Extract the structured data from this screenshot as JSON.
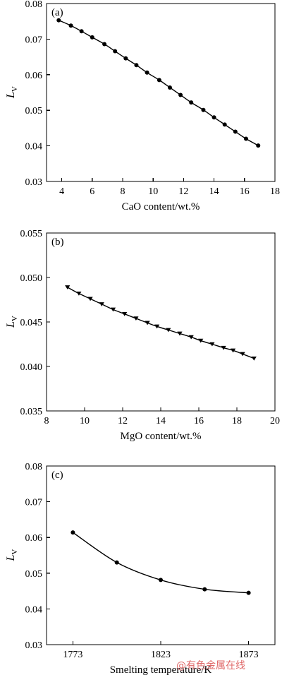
{
  "watermark": "@有色金属在线",
  "chart_data": [
    {
      "type": "line",
      "panel_label": "(a)",
      "xlabel": "CaO content/wt.%",
      "ylabel": {
        "main": "L",
        "sub": "V"
      },
      "xlim": [
        3,
        18
      ],
      "ylim": [
        0.03,
        0.08
      ],
      "xticks": [
        4,
        6,
        8,
        10,
        12,
        14,
        16,
        18
      ],
      "yticks": [
        0.03,
        0.04,
        0.05,
        0.06,
        0.07,
        0.08
      ],
      "xtick_labels": [
        "4",
        "6",
        "8",
        "10",
        "12",
        "14",
        "16",
        "18"
      ],
      "ytick_labels": [
        "0.03",
        "0.04",
        "0.05",
        "0.06",
        "0.07",
        "0.08"
      ],
      "marker": "circle",
      "grid": false,
      "series": [
        {
          "x": [
            3.8,
            4.6,
            5.3,
            6.0,
            6.8,
            7.5,
            8.2,
            8.9,
            9.6,
            10.4,
            11.1,
            11.8,
            12.5,
            13.3,
            14.0,
            14.7,
            15.4,
            16.1,
            16.9
          ],
          "y": [
            0.0753,
            0.0738,
            0.0722,
            0.0705,
            0.0686,
            0.0666,
            0.0646,
            0.0627,
            0.0606,
            0.0585,
            0.0564,
            0.0543,
            0.0522,
            0.0501,
            0.048,
            0.046,
            0.044,
            0.042,
            0.0401
          ]
        }
      ]
    },
    {
      "type": "line",
      "panel_label": "(b)",
      "xlabel": "MgO content/wt.%",
      "ylabel": {
        "main": "L",
        "sub": "V"
      },
      "xlim": [
        8,
        20
      ],
      "ylim": [
        0.035,
        0.055
      ],
      "xticks": [
        8,
        10,
        12,
        14,
        16,
        18,
        20
      ],
      "yticks": [
        0.035,
        0.04,
        0.045,
        0.05,
        0.055
      ],
      "xtick_labels": [
        "8",
        "10",
        "12",
        "14",
        "16",
        "18",
        "20"
      ],
      "ytick_labels": [
        "0.035",
        "0.040",
        "0.045",
        "0.050",
        "0.055"
      ],
      "marker": "triangle-down",
      "grid": false,
      "series": [
        {
          "x": [
            9.1,
            9.7,
            10.3,
            10.9,
            11.5,
            12.1,
            12.7,
            13.3,
            13.8,
            14.4,
            15.0,
            15.6,
            16.1,
            16.7,
            17.3,
            17.8,
            18.3,
            18.9
          ],
          "y": [
            0.0489,
            0.0482,
            0.0476,
            0.047,
            0.0464,
            0.0459,
            0.0454,
            0.0449,
            0.0445,
            0.0441,
            0.0437,
            0.0433,
            0.0429,
            0.0425,
            0.0421,
            0.0418,
            0.0414,
            0.0409
          ]
        }
      ]
    },
    {
      "type": "line",
      "panel_label": "(c)",
      "xlabel": "Smelting temperature/K",
      "ylabel": {
        "main": "L",
        "sub": "V"
      },
      "xlim": [
        1758,
        1888
      ],
      "ylim": [
        0.03,
        0.08
      ],
      "xticks": [
        1773,
        1823,
        1873
      ],
      "yticks": [
        0.03,
        0.04,
        0.05,
        0.06,
        0.07,
        0.08
      ],
      "xtick_labels": [
        "1773",
        "1823",
        "1873"
      ],
      "ytick_labels": [
        "0.03",
        "0.04",
        "0.05",
        "0.06",
        "0.07",
        "0.08"
      ],
      "marker": "circle",
      "grid": false,
      "series": [
        {
          "x": [
            1773,
            1798,
            1823,
            1848,
            1873
          ],
          "y": [
            0.0614,
            0.053,
            0.0481,
            0.0455,
            0.0445
          ]
        }
      ]
    }
  ]
}
